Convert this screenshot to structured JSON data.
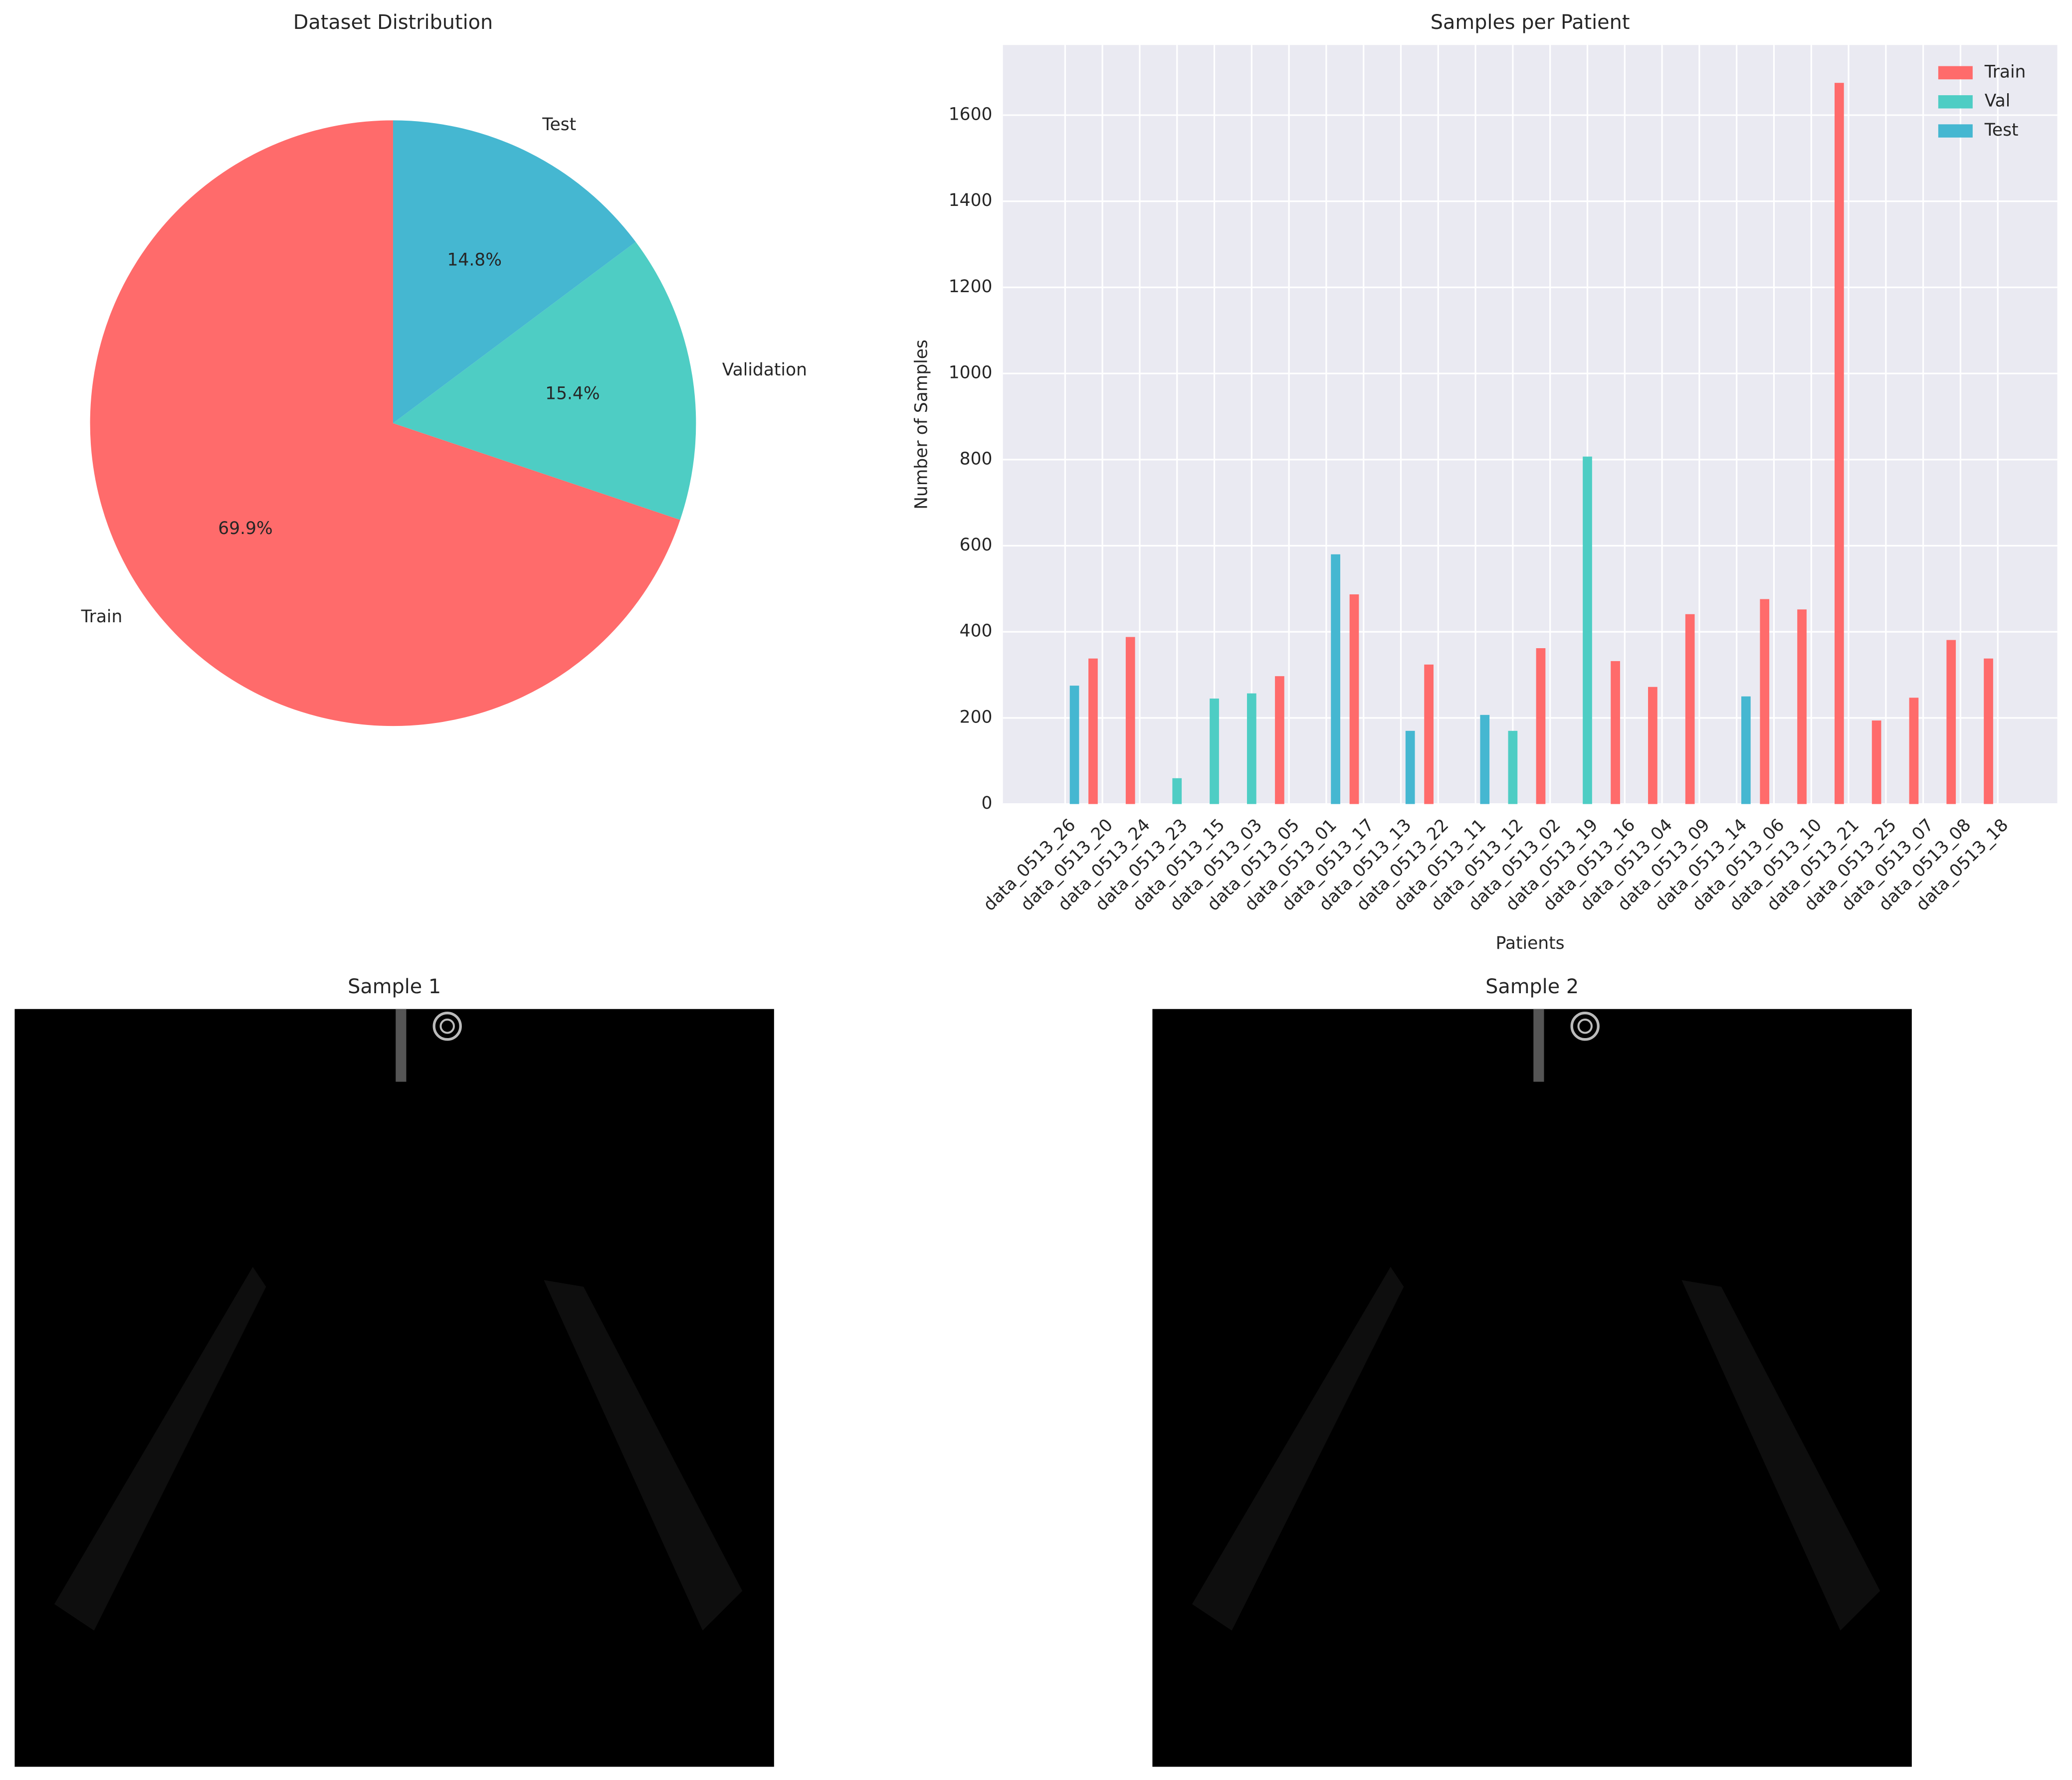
{
  "chart_data": [
    {
      "type": "pie",
      "title": "Dataset Distribution",
      "categories": [
        "Train",
        "Validation",
        "Test"
      ],
      "values": [
        69.9,
        15.4,
        14.8
      ],
      "value_labels": [
        "69.9%",
        "15.4%",
        "14.8%"
      ],
      "colors": [
        "#ff6b6b",
        "#4ecdc4",
        "#45b7d1"
      ]
    },
    {
      "type": "bar",
      "title": "Samples per Patient",
      "x_label": "Patients",
      "y_label": "Number of Samples",
      "categories": [
        "data_0513_26",
        "data_0513_20",
        "data_0513_24",
        "data_0513_23",
        "data_0513_15",
        "data_0513_03",
        "data_0513_05",
        "data_0513_01",
        "data_0513_17",
        "data_0513_13",
        "data_0513_22",
        "data_0513_11",
        "data_0513_12",
        "data_0513_02",
        "data_0513_19",
        "data_0513_16",
        "data_0513_04",
        "data_0513_09",
        "data_0513_14",
        "data_0513_06",
        "data_0513_10",
        "data_0513_21",
        "data_0513_25",
        "data_0513_07",
        "data_0513_08",
        "data_0513_18"
      ],
      "series": [
        {
          "name": "Train",
          "color": "#ff6b6b",
          "values": [
            0,
            338,
            388,
            0,
            0,
            0,
            297,
            0,
            487,
            0,
            324,
            0,
            0,
            362,
            0,
            332,
            272,
            441,
            0,
            476,
            452,
            1675,
            194,
            247,
            381,
            338
          ]
        },
        {
          "name": "Val",
          "color": "#4ecdc4",
          "values": [
            0,
            0,
            0,
            60,
            245,
            257,
            0,
            0,
            0,
            0,
            0,
            0,
            170,
            0,
            807,
            0,
            0,
            0,
            0,
            0,
            0,
            0,
            0,
            0,
            0,
            0
          ]
        },
        {
          "name": "Test",
          "color": "#45b7d1",
          "values": [
            275,
            0,
            0,
            0,
            0,
            0,
            0,
            580,
            0,
            170,
            0,
            207,
            0,
            0,
            0,
            0,
            0,
            0,
            250,
            0,
            0,
            0,
            0,
            0,
            0,
            0
          ]
        }
      ],
      "ylim": [
        0,
        1763
      ],
      "yticks": [
        0,
        200,
        400,
        600,
        800,
        1000,
        1200,
        1400,
        1600
      ],
      "grid": true,
      "legend": "upper right"
    },
    {
      "type": "image",
      "title": "Sample 1"
    },
    {
      "type": "image",
      "title": "Sample 2"
    }
  ]
}
